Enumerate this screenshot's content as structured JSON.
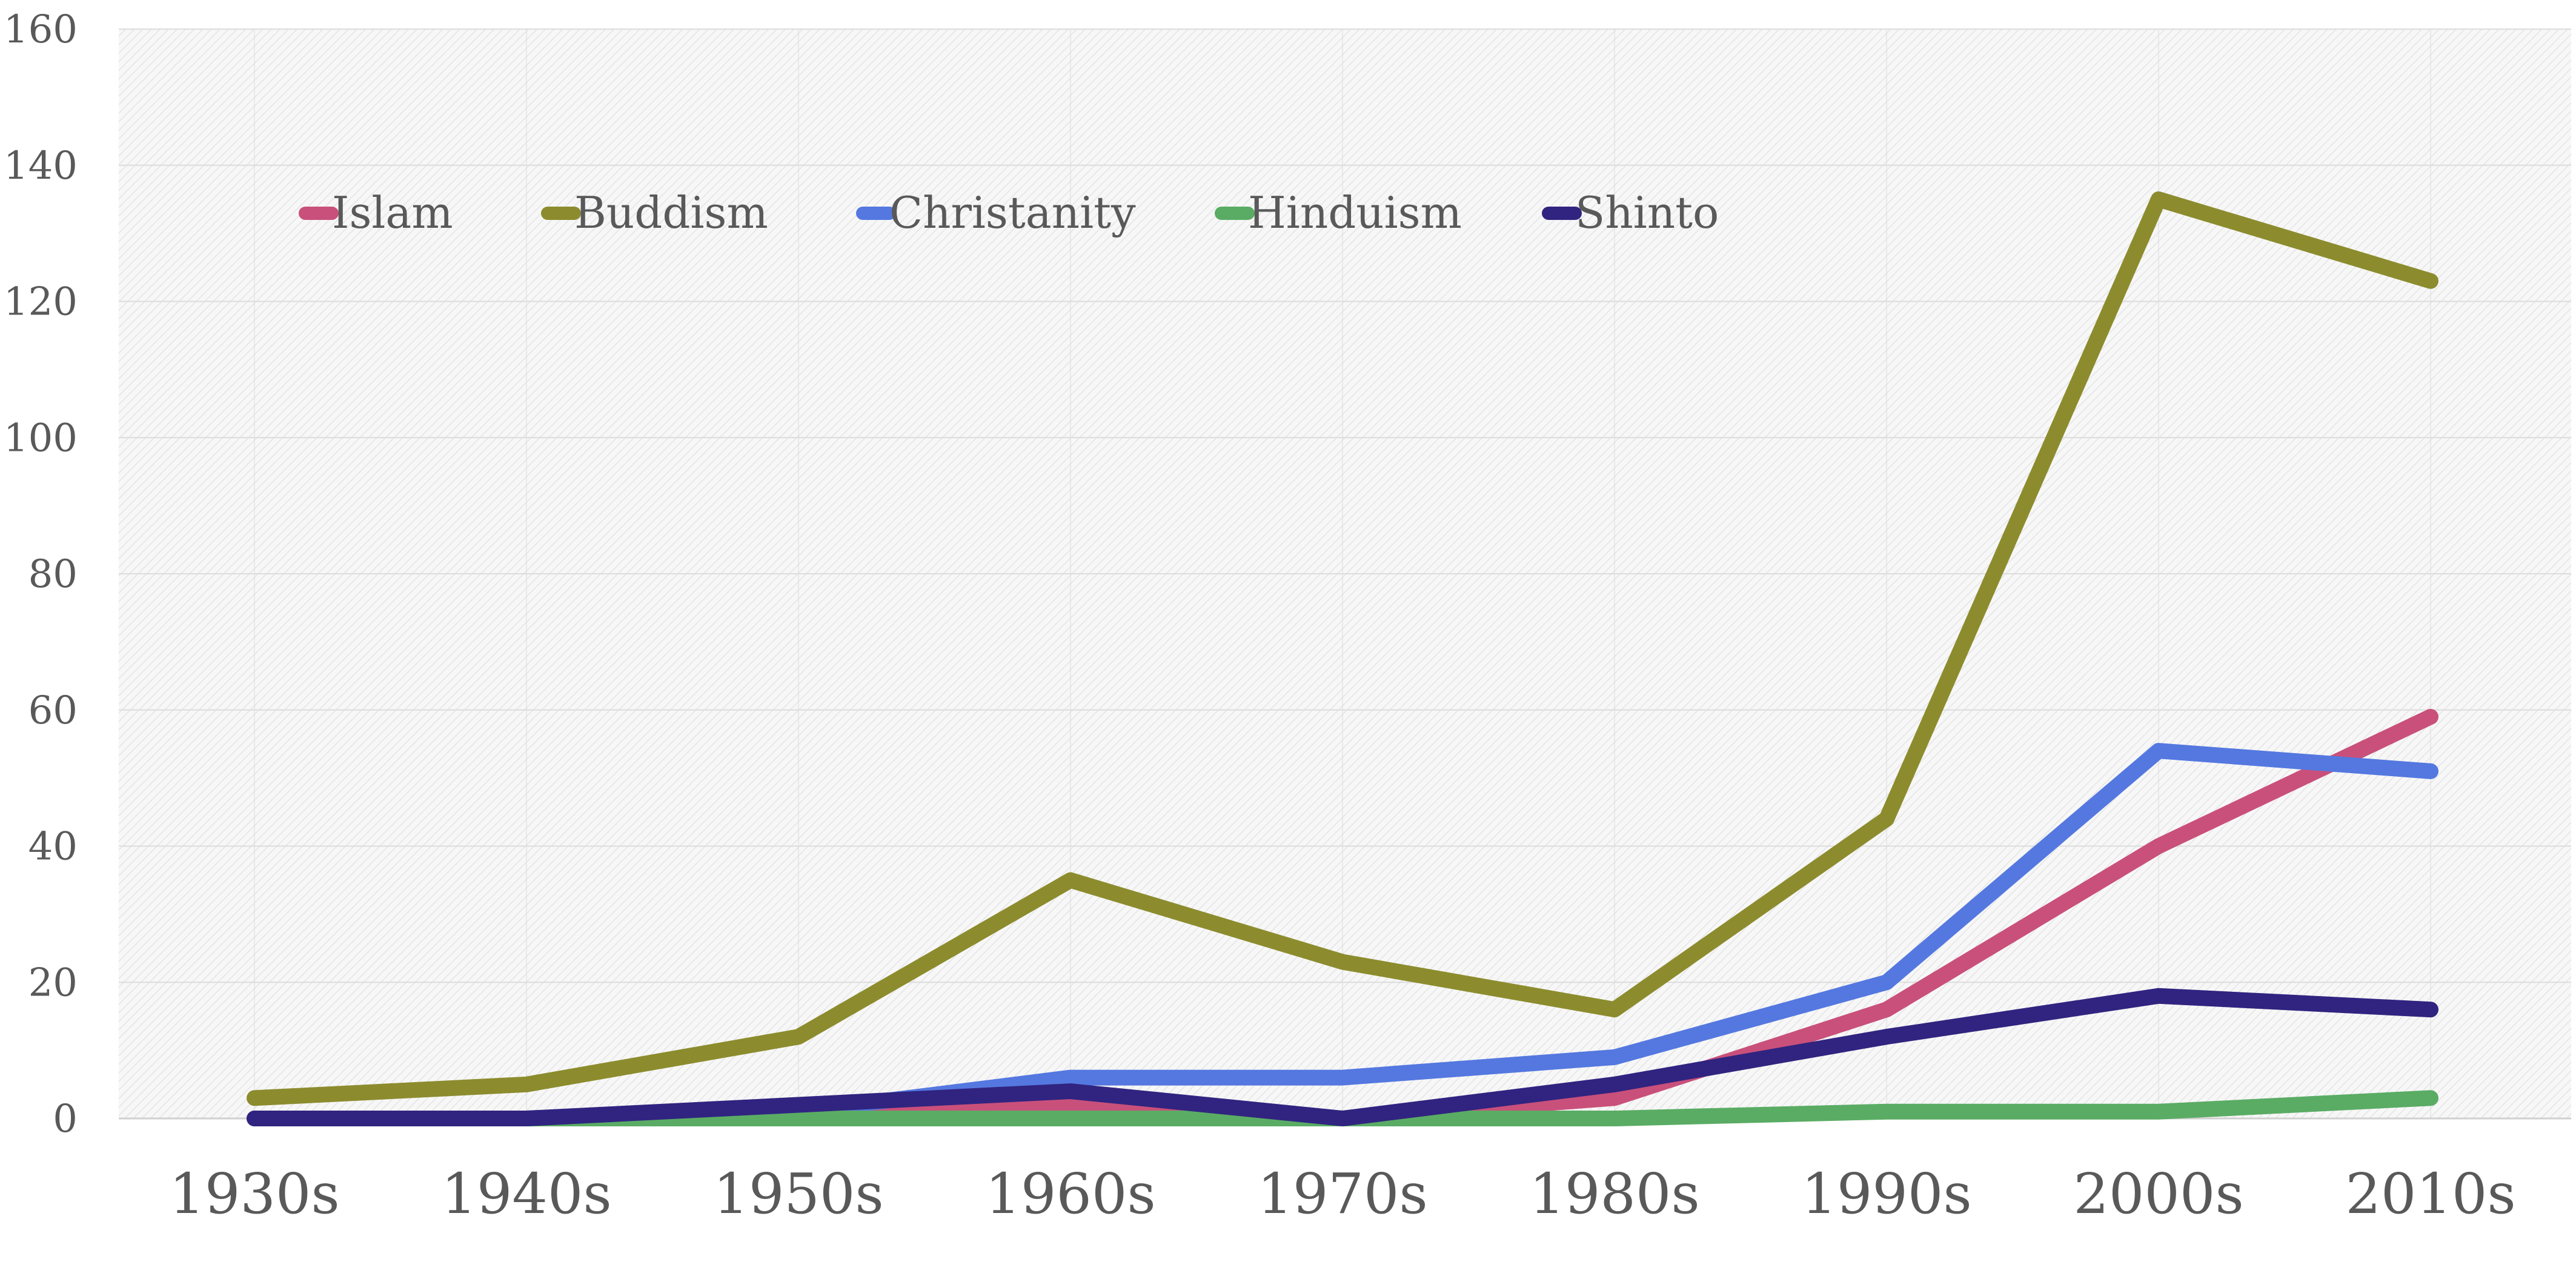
{
  "chart_data": {
    "type": "line",
    "title": "",
    "xlabel": "",
    "ylabel": "",
    "ylim": [
      0,
      160
    ],
    "yticks": [
      0,
      20,
      40,
      60,
      80,
      100,
      120,
      140,
      160
    ],
    "ytick_labels": [
      "0",
      "20",
      "40",
      "60",
      "80",
      "100",
      "120",
      "140",
      "160"
    ],
    "categories": [
      "1930s",
      "1940s",
      "1950s",
      "1960s",
      "1970s",
      "1980s",
      "1990s",
      "2000s",
      "2010s"
    ],
    "grid": true,
    "legend_position": "top-left",
    "series": [
      {
        "name": "Islam",
        "color": "#c9507a",
        "values": [
          0,
          0,
          1,
          2,
          0,
          3,
          16,
          40,
          59
        ]
      },
      {
        "name": "Buddism",
        "color": "#8c8c2e",
        "values": [
          3,
          5,
          12,
          35,
          23,
          16,
          44,
          135,
          123
        ]
      },
      {
        "name": "Christanity",
        "color": "#5478e0",
        "values": [
          0,
          0,
          1,
          6,
          6,
          9,
          20,
          54,
          51
        ]
      },
      {
        "name": "Hinduism",
        "color": "#5aac64",
        "values": [
          0,
          0,
          0,
          0,
          0,
          0,
          1,
          1,
          3
        ]
      },
      {
        "name": "Shinto",
        "color": "#302480",
        "values": [
          0,
          0,
          2,
          4,
          0,
          5,
          12,
          18,
          16
        ]
      }
    ]
  }
}
